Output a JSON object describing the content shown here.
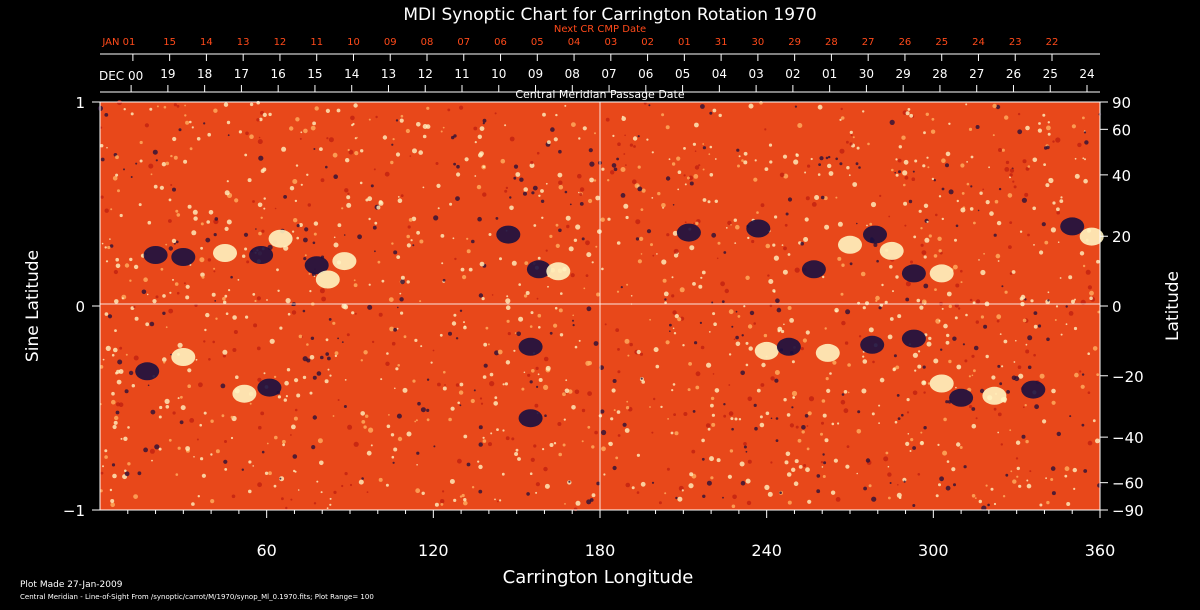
{
  "chart_data": {
    "type": "heatmap",
    "title": "MDI Synoptic Chart for Carrington Rotation 1970",
    "xlabel": "Carrington Longitude",
    "ylabel_left": "Sine Latitude",
    "ylabel_right": "Latitude",
    "top_axis_label": "Central Meridian Passage Date",
    "next_axis_label": "Next CR CMP Date",
    "xlim": [
      0,
      360
    ],
    "ylim": [
      -1,
      1
    ],
    "grid": "crosshair at 180 and 0",
    "x_ticks": [
      60,
      120,
      180,
      240,
      300,
      360
    ],
    "y_ticks_left": [
      {
        "value": -1,
        "label": "−1"
      },
      {
        "value": 0,
        "label": "0"
      },
      {
        "value": 1,
        "label": "1"
      }
    ],
    "y_ticks_right": [
      90,
      60,
      40,
      20,
      0,
      -20,
      -40,
      -60,
      -90
    ],
    "cmp_dates": [
      "DEC 00",
      "19",
      "18",
      "17",
      "16",
      "15",
      "14",
      "13",
      "12",
      "11",
      "10",
      "09",
      "08",
      "07",
      "06",
      "05",
      "04",
      "03",
      "02",
      "01",
      "30",
      "29",
      "28",
      "27",
      "26",
      "25",
      "24"
    ],
    "next_cmp_dates": [
      "JAN 01",
      "15",
      "14",
      "13",
      "12",
      "11",
      "10",
      "09",
      "08",
      "07",
      "06",
      "05",
      "04",
      "03",
      "02",
      "01",
      "31",
      "30",
      "29",
      "28",
      "27",
      "26",
      "25",
      "24",
      "23",
      "22"
    ],
    "colors": {
      "background": "#000000",
      "field": "#e8481a",
      "positive": "#fff3c0",
      "negative": "#1a1040",
      "next_axis": "#ff4a1a",
      "axes": "#ffffff"
    },
    "regions": [
      {
        "lon": 20,
        "sinlat": 0.25,
        "polarity": "negative"
      },
      {
        "lon": 30,
        "sinlat": 0.24,
        "polarity": "negative"
      },
      {
        "lon": 45,
        "sinlat": 0.26,
        "polarity": "positive"
      },
      {
        "lon": 58,
        "sinlat": 0.25,
        "polarity": "negative"
      },
      {
        "lon": 65,
        "sinlat": 0.33,
        "polarity": "positive"
      },
      {
        "lon": 78,
        "sinlat": 0.2,
        "polarity": "negative"
      },
      {
        "lon": 88,
        "sinlat": 0.22,
        "polarity": "positive"
      },
      {
        "lon": 82,
        "sinlat": 0.13,
        "polarity": "positive"
      },
      {
        "lon": 147,
        "sinlat": 0.35,
        "polarity": "negative"
      },
      {
        "lon": 158,
        "sinlat": 0.18,
        "polarity": "negative"
      },
      {
        "lon": 165,
        "sinlat": 0.17,
        "polarity": "positive"
      },
      {
        "lon": 155,
        "sinlat": -0.2,
        "polarity": "negative"
      },
      {
        "lon": 30,
        "sinlat": -0.25,
        "polarity": "positive"
      },
      {
        "lon": 52,
        "sinlat": -0.43,
        "polarity": "positive"
      },
      {
        "lon": 61,
        "sinlat": -0.4,
        "polarity": "negative"
      },
      {
        "lon": 17,
        "sinlat": -0.32,
        "polarity": "negative"
      },
      {
        "lon": 155,
        "sinlat": -0.55,
        "polarity": "negative"
      },
      {
        "lon": 237,
        "sinlat": 0.38,
        "polarity": "negative"
      },
      {
        "lon": 257,
        "sinlat": 0.18,
        "polarity": "negative"
      },
      {
        "lon": 270,
        "sinlat": 0.3,
        "polarity": "positive"
      },
      {
        "lon": 279,
        "sinlat": 0.35,
        "polarity": "negative"
      },
      {
        "lon": 285,
        "sinlat": 0.27,
        "polarity": "positive"
      },
      {
        "lon": 293,
        "sinlat": 0.16,
        "polarity": "negative"
      },
      {
        "lon": 303,
        "sinlat": 0.16,
        "polarity": "positive"
      },
      {
        "lon": 350,
        "sinlat": 0.39,
        "polarity": "negative"
      },
      {
        "lon": 357,
        "sinlat": 0.34,
        "polarity": "positive"
      },
      {
        "lon": 212,
        "sinlat": 0.36,
        "polarity": "negative"
      },
      {
        "lon": 240,
        "sinlat": -0.22,
        "polarity": "positive"
      },
      {
        "lon": 248,
        "sinlat": -0.2,
        "polarity": "negative"
      },
      {
        "lon": 262,
        "sinlat": -0.23,
        "polarity": "positive"
      },
      {
        "lon": 278,
        "sinlat": -0.19,
        "polarity": "negative"
      },
      {
        "lon": 293,
        "sinlat": -0.16,
        "polarity": "negative"
      },
      {
        "lon": 303,
        "sinlat": -0.38,
        "polarity": "positive"
      },
      {
        "lon": 310,
        "sinlat": -0.45,
        "polarity": "negative"
      },
      {
        "lon": 322,
        "sinlat": -0.44,
        "polarity": "positive"
      },
      {
        "lon": 336,
        "sinlat": -0.41,
        "polarity": "negative"
      }
    ]
  },
  "footer": {
    "plot_made": "Plot Made 27-Jan-2009",
    "caption": "Central Meridian - Line-of-Sight From /synoptic/carrot/M/1970/synop_Ml_0.1970.fits; Plot Range= 100"
  }
}
